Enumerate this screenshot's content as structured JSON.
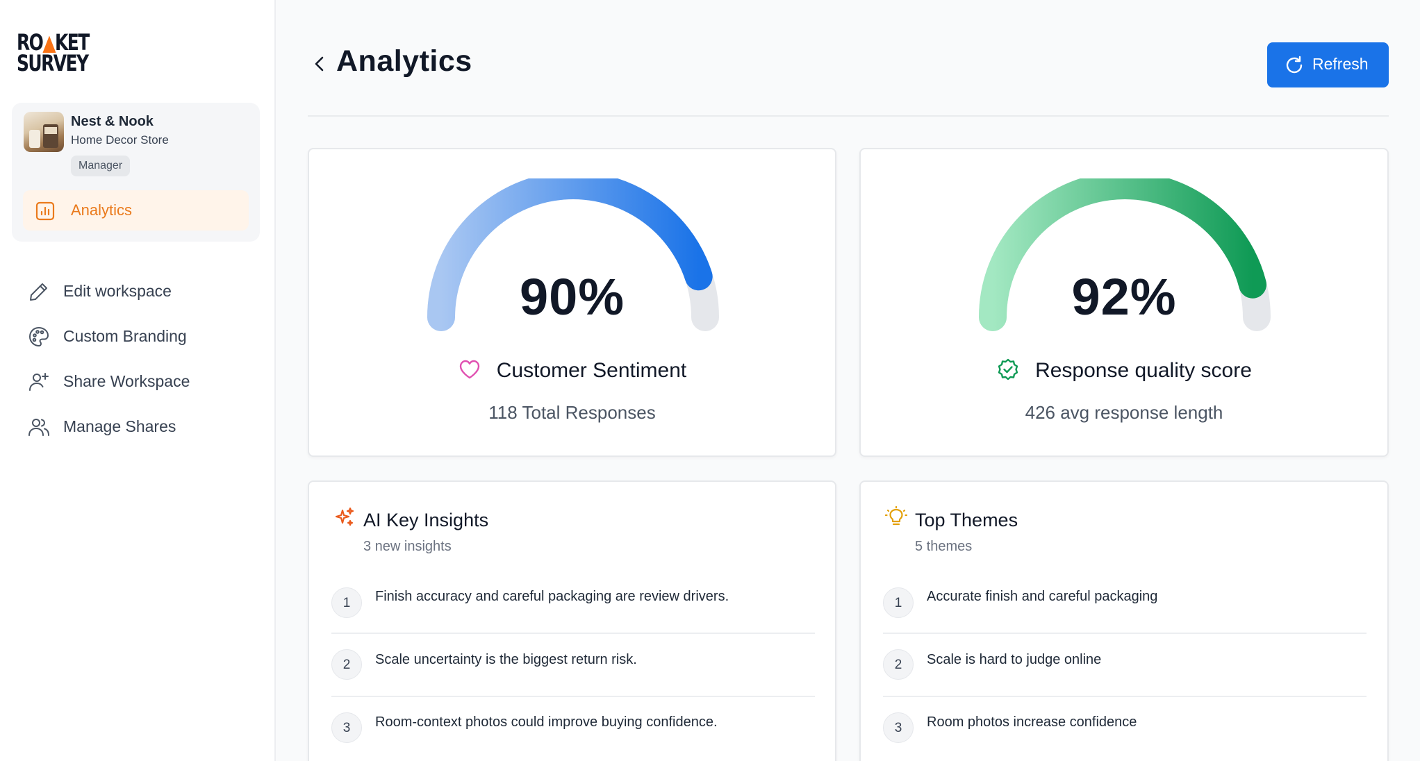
{
  "brand": {
    "line1": "ROCKET",
    "line1_a": "RO",
    "line1_b": "KET",
    "line2": "SURVEY",
    "accent_color": "#f97316"
  },
  "workspace": {
    "name": "Nest & Nook",
    "subtitle": "Home Decor Store",
    "role": "Manager",
    "active_nav": {
      "label": "Analytics",
      "icon": "bar-chart-icon"
    }
  },
  "nav": [
    {
      "label": "Edit workspace",
      "icon": "pencil-icon"
    },
    {
      "label": "Custom Branding",
      "icon": "palette-icon"
    },
    {
      "label": "Share Workspace",
      "icon": "user-plus-icon"
    },
    {
      "label": "Manage Shares",
      "icon": "users-icon"
    }
  ],
  "header": {
    "title": "Analytics",
    "refresh_label": "Refresh",
    "primary_color": "#1a73e8"
  },
  "gauges": [
    {
      "value": "90%",
      "fraction": 0.9,
      "label": "Customer Sentiment",
      "sub": "118 Total Responses",
      "icon": "heart-icon",
      "color_from": "#a9c7f2",
      "color_to": "#1a73e8"
    },
    {
      "value": "92%",
      "fraction": 0.92,
      "label": "Response quality score",
      "sub": "426 avg response length",
      "icon": "badge-check-icon",
      "color_from": "#a3e8c2",
      "color_to": "#0f9a55"
    }
  ],
  "insights": {
    "title": "AI Key Insights",
    "subtitle": "3 new insights",
    "icon": "sparkles-icon",
    "items": [
      {
        "num": "1",
        "text": "Finish accuracy and careful packaging are review drivers."
      },
      {
        "num": "2",
        "text": "Scale uncertainty is the biggest return risk."
      },
      {
        "num": "3",
        "text": "Room-context photos could improve buying confidence."
      }
    ]
  },
  "themes": {
    "title": "Top Themes",
    "subtitle": "5 themes",
    "icon": "lightbulb-icon",
    "items": [
      {
        "num": "1",
        "text": "Accurate finish and careful packaging"
      },
      {
        "num": "2",
        "text": "Scale is hard to judge online"
      },
      {
        "num": "3",
        "text": "Room photos increase confidence"
      }
    ]
  }
}
